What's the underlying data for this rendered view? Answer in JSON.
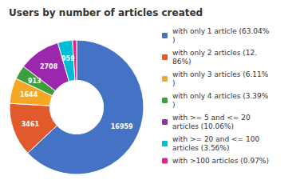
{
  "chart_data": {
    "type": "pie",
    "title": "Users by number of articles created",
    "categories": [
      "with only 1 article (63.04%\n)",
      "with only 2 articles (12.\n86%)",
      "with only 3 articles (6.11%\n)",
      "with only 4 articles (3.39%\n)",
      "with >= 5 and <= 20\narticles (10.06%)",
      "with >= 20 and <= 100\narticles (3.56%)",
      "with >100 articles (0.97%)"
    ],
    "values": [
      63.04,
      12.86,
      6.11,
      3.39,
      10.06,
      3.56,
      0.97
    ],
    "counts": [
      16959,
      3461,
      1644,
      913,
      2708,
      959,
      null
    ],
    "colors": [
      "#4472c4",
      "#e05a2b",
      "#f5a623",
      "#3d9e3d",
      "#9b27af",
      "#00bcd4",
      "#e91e8c"
    ],
    "legend": "right"
  }
}
